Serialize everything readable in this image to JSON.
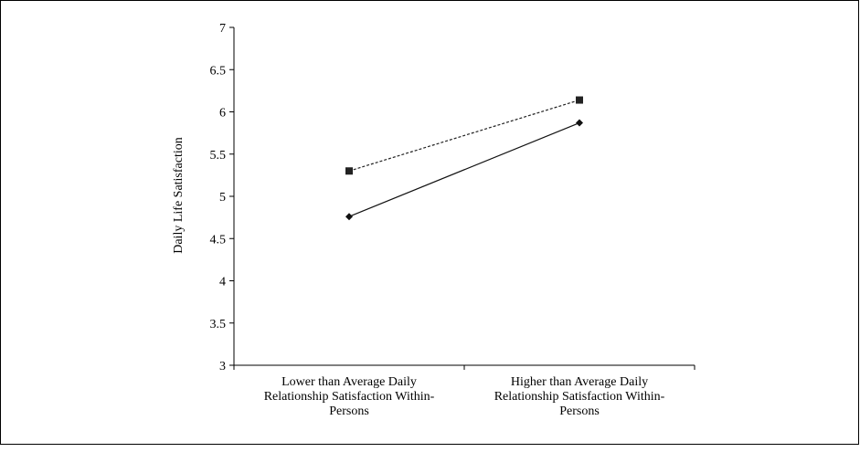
{
  "chart_data": {
    "type": "line",
    "title": "",
    "xlabel": "",
    "ylabel": "Daily Life Satisfaction",
    "ylim": [
      3,
      7
    ],
    "yticks": [
      "3",
      "3.5",
      "4",
      "4.5",
      "5",
      "5.5",
      "6",
      "6.5",
      "7"
    ],
    "categories": [
      [
        "Lower than Average Daily",
        "Relationship Satisfaction Within-",
        "Persons"
      ],
      [
        "Higher than Average Daily",
        "Relationship Satisfaction Within-",
        "Persons"
      ]
    ],
    "grid": false,
    "legend": "none",
    "series": [
      {
        "values": [
          5.3,
          6.14
        ],
        "line_style": "dashed",
        "marker": "square",
        "color": "#222222"
      },
      {
        "values": [
          4.76,
          5.87
        ],
        "line_style": "solid",
        "marker": "diamond",
        "color": "#111111"
      }
    ]
  }
}
